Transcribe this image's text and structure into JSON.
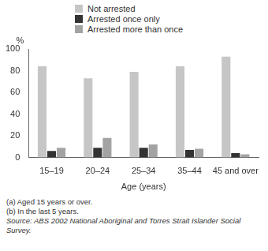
{
  "chart_data": {
    "type": "bar",
    "y_label": "%",
    "x_label": "Age (years)",
    "categories": [
      "15–19",
      "20–24",
      "25–34",
      "35–44",
      "45 and over"
    ],
    "series": [
      {
        "name": "Not arrested",
        "color": "#c6c6c6",
        "values": [
          84,
          73,
          79,
          84,
          93
        ]
      },
      {
        "name": "Arrested once only",
        "color": "#333333",
        "values": [
          6,
          9,
          9,
          7,
          4
        ]
      },
      {
        "name": "Arrested more than once",
        "color": "#a3a3a3",
        "values": [
          9,
          18,
          12,
          8,
          3
        ]
      }
    ],
    "ylim": [
      0,
      100
    ],
    "yticks": [
      0,
      20,
      40,
      60,
      80,
      100
    ],
    "grid": false,
    "legend": "top",
    "annotations": [
      "(a) Aged 15 years or over.",
      "(b) In the last 5 years.",
      "Source: ABS 2002 National Aboriginal and Torres Strait Islander Social Survey."
    ]
  }
}
